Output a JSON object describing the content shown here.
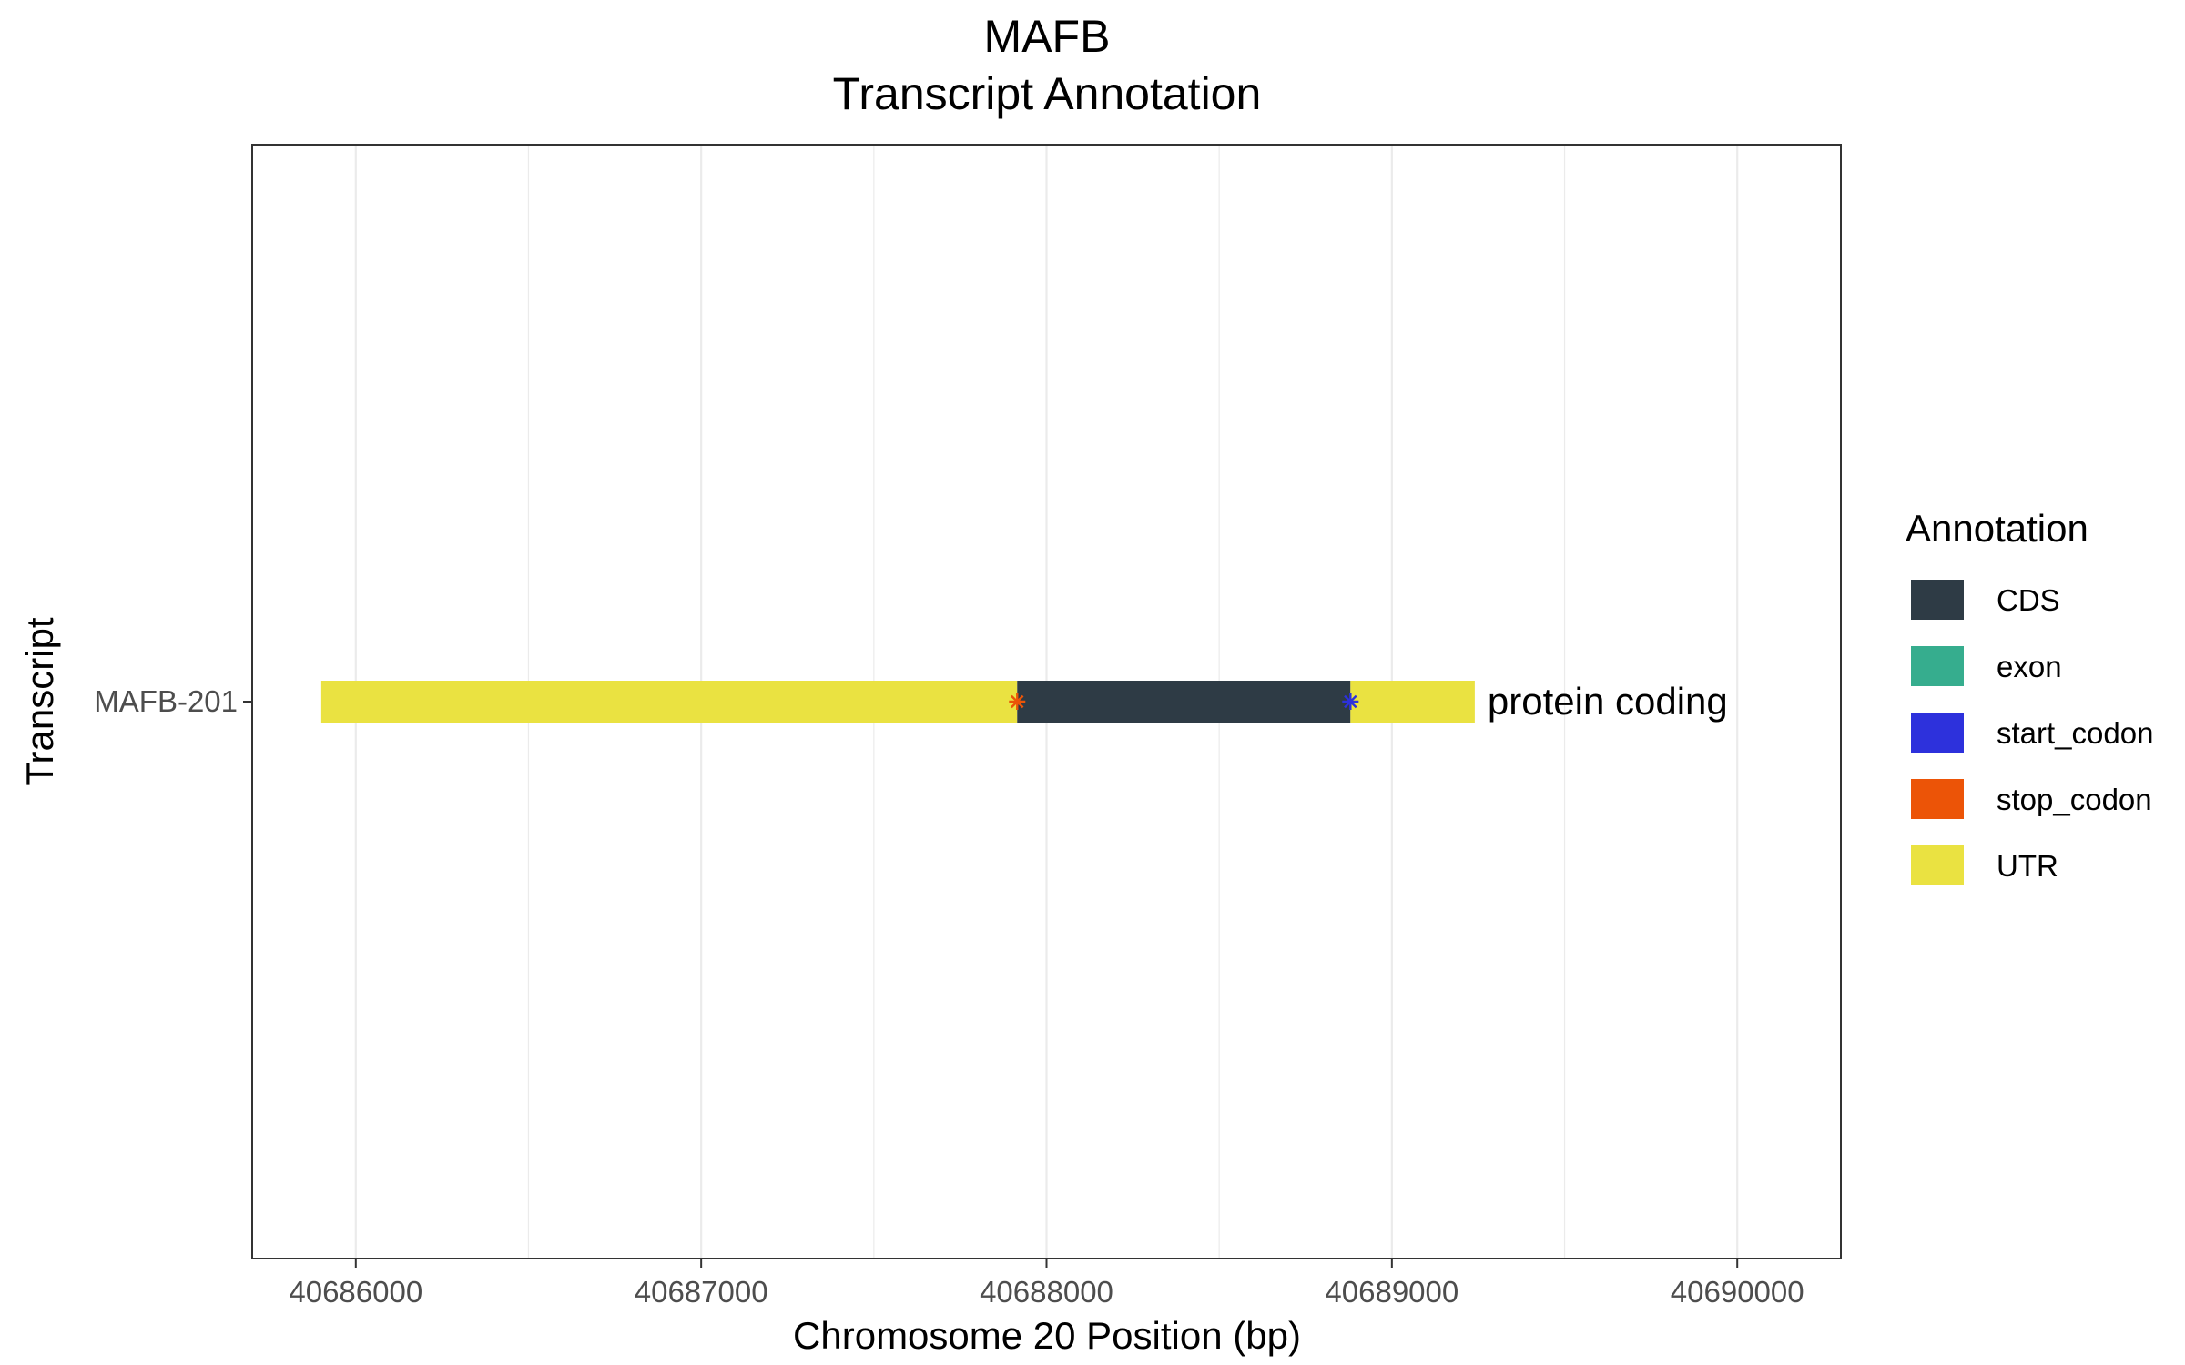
{
  "chart_data": {
    "type": "gene-track",
    "title": "MAFB",
    "subtitle": "Transcript Annotation",
    "xlabel": "Chromosome 20 Position (bp)",
    "ylabel": "Transcript",
    "xlim": [
      40685700,
      40690300
    ],
    "x_ticks": [
      {
        "value": 40686000,
        "label": "40686000"
      },
      {
        "value": 40687000,
        "label": "40687000"
      },
      {
        "value": 40688000,
        "label": "40688000"
      },
      {
        "value": 40689000,
        "label": "40689000"
      },
      {
        "value": 40690000,
        "label": "40690000"
      }
    ],
    "grid": true,
    "legend": {
      "title": "Annotation",
      "position": "right",
      "entries": [
        {
          "label": "CDS",
          "color": "#2e3b45"
        },
        {
          "label": "exon",
          "color": "#36ad8e"
        },
        {
          "label": "start_codon",
          "color": "#2d31dc"
        },
        {
          "label": "stop_codon",
          "color": "#ec5407"
        },
        {
          "label": "UTR",
          "color": "#eae241"
        }
      ]
    },
    "transcripts": [
      {
        "name": "MAFB-201",
        "biotype_label": "protein coding",
        "features": [
          {
            "type": "UTR",
            "start": 40685900,
            "end": 40687915
          },
          {
            "type": "CDS",
            "start": 40687915,
            "end": 40688880
          },
          {
            "type": "UTR",
            "start": 40688880,
            "end": 40689240
          }
        ],
        "codons": [
          {
            "type": "stop_codon",
            "position": 40687915
          },
          {
            "type": "start_codon",
            "position": 40688880
          }
        ]
      }
    ]
  }
}
